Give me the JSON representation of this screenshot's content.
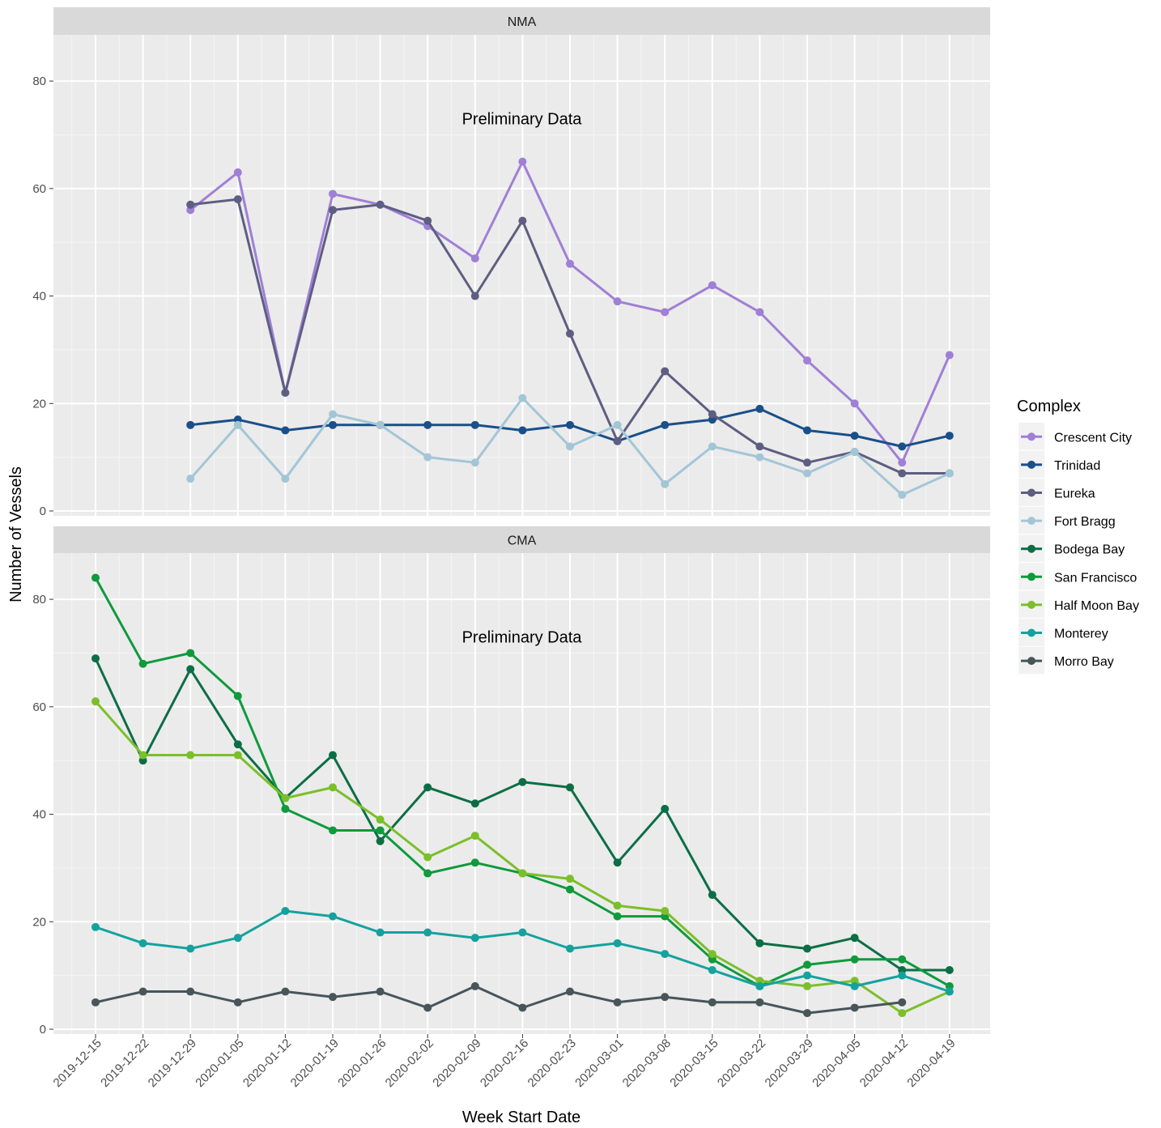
{
  "chart_data": {
    "type": "line",
    "xlabel": "Week Start Date",
    "ylabel": "Number of Vessels",
    "x_ticks": [
      "2019-12-15",
      "2019-12-22",
      "2019-12-29",
      "2020-01-05",
      "2020-01-12",
      "2020-01-19",
      "2020-01-26",
      "2020-02-02",
      "2020-02-09",
      "2020-02-16",
      "2020-02-23",
      "2020-03-01",
      "2020-03-08",
      "2020-03-15",
      "2020-03-22",
      "2020-03-29",
      "2020-04-05",
      "2020-04-12",
      "2020-04-19"
    ],
    "ylim": [
      0,
      88
    ],
    "y_ticks": [
      0,
      20,
      40,
      60,
      80
    ],
    "grid": true,
    "legend": {
      "title": "Complex",
      "position": "right",
      "entries": [
        {
          "name": "Crescent City",
          "color": "#a07fd6"
        },
        {
          "name": "Trinidad",
          "color": "#1a4f8a"
        },
        {
          "name": "Eureka",
          "color": "#5e5e82"
        },
        {
          "name": "Fort Bragg",
          "color": "#a3c6d6"
        },
        {
          "name": "Bodega Bay",
          "color": "#0d6e45"
        },
        {
          "name": "San Francisco",
          "color": "#0f9a3c"
        },
        {
          "name": "Half Moon Bay",
          "color": "#7bbf2a"
        },
        {
          "name": "Monterey",
          "color": "#14a29e"
        },
        {
          "name": "Morro Bay",
          "color": "#48555a"
        }
      ]
    },
    "panels": [
      {
        "strip": "NMA",
        "annotation": "Preliminary Data",
        "series": [
          {
            "name": "Crescent City",
            "color": "#a07fd6",
            "values": [
              null,
              null,
              56,
              63,
              22,
              59,
              57,
              53,
              47,
              65,
              46,
              39,
              37,
              42,
              37,
              28,
              20,
              9,
              29
            ]
          },
          {
            "name": "Trinidad",
            "color": "#1a4f8a",
            "values": [
              null,
              null,
              16,
              17,
              15,
              16,
              16,
              16,
              16,
              15,
              16,
              13,
              16,
              17,
              19,
              15,
              14,
              12,
              14
            ]
          },
          {
            "name": "Eureka",
            "color": "#5e5e82",
            "values": [
              null,
              null,
              57,
              58,
              22,
              56,
              57,
              54,
              40,
              54,
              33,
              13,
              26,
              18,
              12,
              9,
              11,
              7,
              7
            ]
          },
          {
            "name": "Fort Bragg",
            "color": "#a3c6d6",
            "values": [
              null,
              null,
              6,
              16,
              6,
              18,
              16,
              10,
              9,
              21,
              12,
              16,
              5,
              12,
              10,
              7,
              11,
              3,
              7
            ]
          }
        ]
      },
      {
        "strip": "CMA",
        "annotation": "Preliminary Data",
        "series": [
          {
            "name": "Bodega Bay",
            "color": "#0d6e45",
            "values": [
              69,
              50,
              67,
              53,
              43,
              51,
              35,
              45,
              42,
              46,
              45,
              31,
              41,
              25,
              16,
              15,
              17,
              11,
              11
            ]
          },
          {
            "name": "San Francisco",
            "color": "#0f9a3c",
            "values": [
              84,
              68,
              70,
              62,
              41,
              37,
              37,
              29,
              31,
              29,
              26,
              21,
              21,
              13,
              8,
              12,
              13,
              13,
              8
            ]
          },
          {
            "name": "Half Moon Bay",
            "color": "#7bbf2a",
            "values": [
              61,
              51,
              51,
              51,
              43,
              45,
              39,
              32,
              36,
              29,
              28,
              23,
              22,
              14,
              9,
              8,
              9,
              3,
              7
            ]
          },
          {
            "name": "Monterey",
            "color": "#14a29e",
            "values": [
              19,
              16,
              15,
              17,
              22,
              21,
              18,
              18,
              17,
              18,
              15,
              16,
              14,
              11,
              8,
              10,
              8,
              10,
              7
            ]
          },
          {
            "name": "Morro Bay",
            "color": "#48555a",
            "values": [
              5,
              7,
              7,
              5,
              7,
              6,
              7,
              4,
              8,
              4,
              7,
              5,
              6,
              5,
              5,
              3,
              4,
              5,
              null
            ]
          }
        ]
      }
    ]
  }
}
